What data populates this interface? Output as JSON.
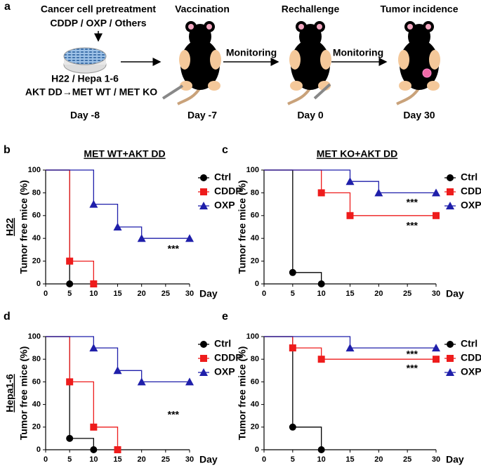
{
  "schematic": {
    "panel_label": "a",
    "pretreatment": "Cancer cell pretreatment",
    "drugs": "CDDP / OXP / Others",
    "cells": "H22 / Hepa 1-6",
    "genotypes": "AKT DD→MET WT / MET KO",
    "steps": [
      {
        "title": "Vaccination",
        "day": "Day -7"
      },
      {
        "title": "Rechallenge",
        "day": "Day 0"
      },
      {
        "title": "Tumor incidence",
        "day": "Day 30"
      }
    ],
    "first_day": "Day -8",
    "monitoring": [
      "Monitoring",
      "Monitoring"
    ]
  },
  "chart_data": [
    {
      "type": "step",
      "panel_label": "b",
      "row_label": "H22",
      "title": "MET WT+AKT DD",
      "xlabel": "Day",
      "ylabel": "Tumor free mice (%)",
      "xlim": [
        0,
        30
      ],
      "xticks": [
        0,
        5,
        10,
        15,
        20,
        25,
        30
      ],
      "ylim": [
        0,
        100
      ],
      "yticks": [
        0,
        20,
        40,
        60,
        80,
        100
      ],
      "series": [
        {
          "name": "Ctrl",
          "color": "#000000",
          "marker": "circle",
          "x": [
            0,
            5
          ],
          "values": [
            100,
            0
          ]
        },
        {
          "name": "CDDP",
          "color": "#ee1c1c",
          "marker": "square",
          "x": [
            0,
            5,
            10
          ],
          "values": [
            100,
            20,
            0
          ]
        },
        {
          "name": "OXP",
          "color": "#1f1faa",
          "marker": "triangle",
          "x": [
            0,
            10,
            15,
            20,
            30
          ],
          "values": [
            100,
            70,
            50,
            40,
            40
          ]
        }
      ],
      "annotations": [
        "***"
      ]
    },
    {
      "type": "step",
      "panel_label": "c",
      "title": "MET KO+AKT DD",
      "xlabel": "Day",
      "ylabel": "Tumor free mice (%)",
      "xlim": [
        0,
        30
      ],
      "xticks": [
        0,
        5,
        10,
        15,
        20,
        25,
        30
      ],
      "ylim": [
        0,
        100
      ],
      "yticks": [
        0,
        20,
        40,
        60,
        80,
        100
      ],
      "series": [
        {
          "name": "Ctrl",
          "color": "#000000",
          "marker": "circle",
          "x": [
            0,
            5,
            10
          ],
          "values": [
            100,
            10,
            0
          ]
        },
        {
          "name": "CDDP",
          "color": "#ee1c1c",
          "marker": "square",
          "x": [
            0,
            10,
            15,
            30
          ],
          "values": [
            100,
            80,
            60,
            60
          ]
        },
        {
          "name": "OXP",
          "color": "#1f1faa",
          "marker": "triangle",
          "x": [
            0,
            15,
            20,
            30
          ],
          "values": [
            100,
            90,
            80,
            80
          ]
        }
      ],
      "annotations": [
        "***",
        "***"
      ]
    },
    {
      "type": "step",
      "panel_label": "d",
      "row_label": "Hepa1-6",
      "xlabel": "Day",
      "ylabel": "Tumor free mice (%)",
      "xlim": [
        0,
        30
      ],
      "xticks": [
        0,
        5,
        10,
        15,
        20,
        25,
        30
      ],
      "ylim": [
        0,
        100
      ],
      "yticks": [
        0,
        20,
        40,
        60,
        80,
        100
      ],
      "series": [
        {
          "name": "Ctrl",
          "color": "#000000",
          "marker": "circle",
          "x": [
            0,
            5,
            10
          ],
          "values": [
            100,
            10,
            0
          ]
        },
        {
          "name": "CDDP",
          "color": "#ee1c1c",
          "marker": "square",
          "x": [
            0,
            5,
            10,
            15
          ],
          "values": [
            100,
            60,
            20,
            0
          ]
        },
        {
          "name": "OXP",
          "color": "#1f1faa",
          "marker": "triangle",
          "x": [
            0,
            10,
            15,
            20,
            30
          ],
          "values": [
            100,
            90,
            70,
            60,
            60
          ]
        }
      ],
      "annotations": [
        "***"
      ]
    },
    {
      "type": "step",
      "panel_label": "e",
      "xlabel": "Day",
      "ylabel": "Tumor free mice (%)",
      "xlim": [
        0,
        30
      ],
      "xticks": [
        0,
        5,
        10,
        15,
        20,
        25,
        30
      ],
      "ylim": [
        0,
        100
      ],
      "yticks": [
        0,
        20,
        40,
        60,
        80,
        100
      ],
      "series": [
        {
          "name": "Ctrl",
          "color": "#000000",
          "marker": "circle",
          "x": [
            0,
            5,
            10
          ],
          "values": [
            100,
            20,
            0
          ]
        },
        {
          "name": "CDDP",
          "color": "#ee1c1c",
          "marker": "square",
          "x": [
            0,
            5,
            10,
            30
          ],
          "values": [
            100,
            90,
            80,
            80
          ]
        },
        {
          "name": "OXP",
          "color": "#1f1faa",
          "marker": "triangle",
          "x": [
            0,
            15,
            30
          ],
          "values": [
            100,
            90,
            90
          ]
        }
      ],
      "annotations": [
        "***",
        "***"
      ]
    }
  ]
}
